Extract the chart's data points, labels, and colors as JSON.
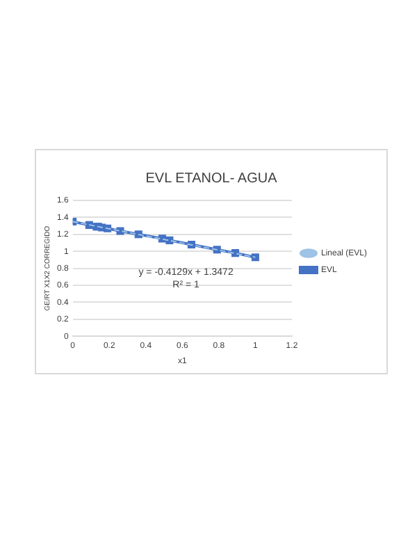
{
  "chart_data": {
    "type": "line",
    "title": "EVL ETANOL- AGUA",
    "xlabel": "x1",
    "ylabel": "GE/RT X1X2 CORREGIDO",
    "x": [
      0,
      0.09,
      0.13,
      0.14,
      0.16,
      0.19,
      0.26,
      0.36,
      0.49,
      0.53,
      0.65,
      0.79,
      0.89,
      1.0
    ],
    "series": [
      {
        "name": "EVL",
        "color": "#4472c4",
        "marker": "square",
        "line_style": "solid",
        "values": [
          1.35,
          1.31,
          1.29,
          1.29,
          1.28,
          1.27,
          1.24,
          1.2,
          1.15,
          1.13,
          1.08,
          1.02,
          0.98,
          0.93
        ]
      },
      {
        "name": "Lineal (EVL)",
        "type": "line",
        "color": "#9dc3e6",
        "marker": "none",
        "line_style": "dashed",
        "x": [
          0,
          1
        ],
        "values": [
          1.35,
          0.93
        ]
      }
    ],
    "annotations": [
      "y = -0.4129x + 1.3472",
      "R² = 1"
    ],
    "xlim": [
      0,
      1.2
    ],
    "xticks": [
      0,
      0.2,
      0.4,
      0.6,
      0.8,
      1,
      1.2
    ],
    "ylim": [
      0,
      1.6
    ],
    "yticks": [
      0,
      0.2,
      0.4,
      0.6,
      0.8,
      1,
      1.2,
      1.4,
      1.6
    ],
    "grid": "y",
    "legend": "right"
  }
}
